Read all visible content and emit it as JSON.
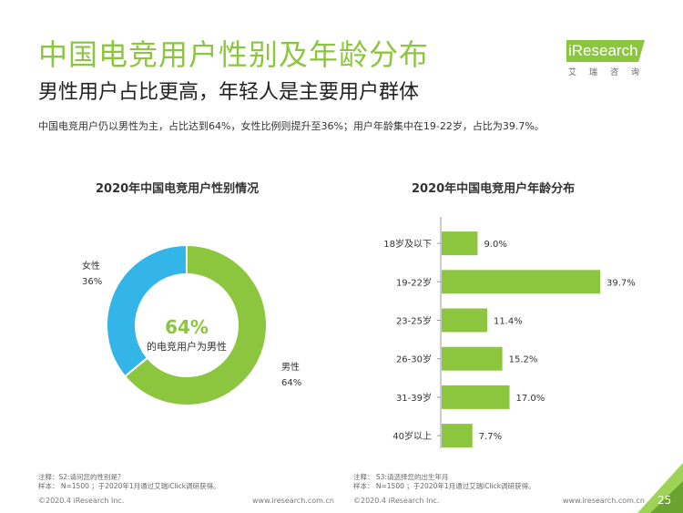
{
  "header": {
    "title": "中国电竞用户性别及年龄分布",
    "subtitle": "男性用户占比更高，年轻人是主要用户群体",
    "summary": "中国电竞用户仍以男性为主，占比达到64%，女性比例则提升至36%；用户年龄集中在19-22岁，占比为39.7%。"
  },
  "logo": {
    "main": "iResearch",
    "sub": "艾瑞咨询"
  },
  "colors": {
    "accent": "#8cc63e",
    "female": "#33b5e8",
    "male": "#8cc63e",
    "bar": "#8cc63e"
  },
  "chart_data": [
    {
      "type": "pie",
      "title": "2020年中国电竞用户性别情况",
      "donut": true,
      "center_value": "64%",
      "center_label": "的电竞用户为男性",
      "slices": [
        {
          "name": "男性",
          "label": "64%",
          "value": 64
        },
        {
          "name": "女性",
          "label": "36%",
          "value": 36
        }
      ]
    },
    {
      "type": "bar",
      "orientation": "horizontal",
      "title": "2020年中国电竞用户年龄分布",
      "categories": [
        "18岁及以下",
        "19-22岁",
        "23-25岁",
        "26-30岁",
        "31-39岁",
        "40岁以上"
      ],
      "values": [
        9.0,
        39.7,
        11.4,
        15.2,
        17.0,
        7.7
      ],
      "labels": [
        "9.0%",
        "39.7%",
        "11.4%",
        "15.2%",
        "17.0%",
        "7.7%"
      ],
      "xlim": [
        0,
        45
      ]
    }
  ],
  "notes": {
    "left_1": "注释：S2:请问您的性别是？",
    "left_2": "样本： N=1500 ；于2020年1月通过艾瑞iClick调研获得。",
    "right_1": "注释： S3:请选择您的出生年月",
    "right_2": "样本： N=1500 ；于2020年1月通过艾瑞iClick调研获得。"
  },
  "footer": {
    "copyright_left": "©2020.4 iResearch Inc.",
    "url_left": "www.iresearch.com.cn",
    "copyright_right": "©2020.4 iResearch Inc.",
    "url_right": "www.iresearch.com.cn",
    "page": "25"
  }
}
